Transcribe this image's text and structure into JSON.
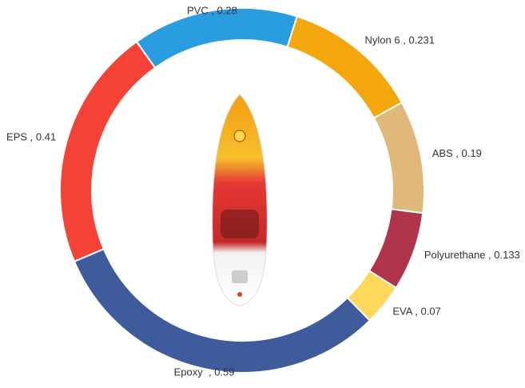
{
  "chart_data": {
    "type": "donut",
    "values": [
      0.28,
      0.231,
      0.19,
      0.133,
      0.07,
      0.59,
      0.41
    ],
    "value_labels": [
      "PVC , 0.28",
      "Nylon 6 , 0.231",
      "ABS , 0.19",
      "Polyurethane , 0.133",
      "EVA , 0.07",
      "Epoxy  , 0.59",
      "EPS , 0.41"
    ],
    "colors": [
      "#2a9de0",
      "#f4a70a",
      "#e0b97a",
      "#b0344a",
      "#fdd85a",
      "#3e5b9c",
      "#f44336"
    ]
  }
}
